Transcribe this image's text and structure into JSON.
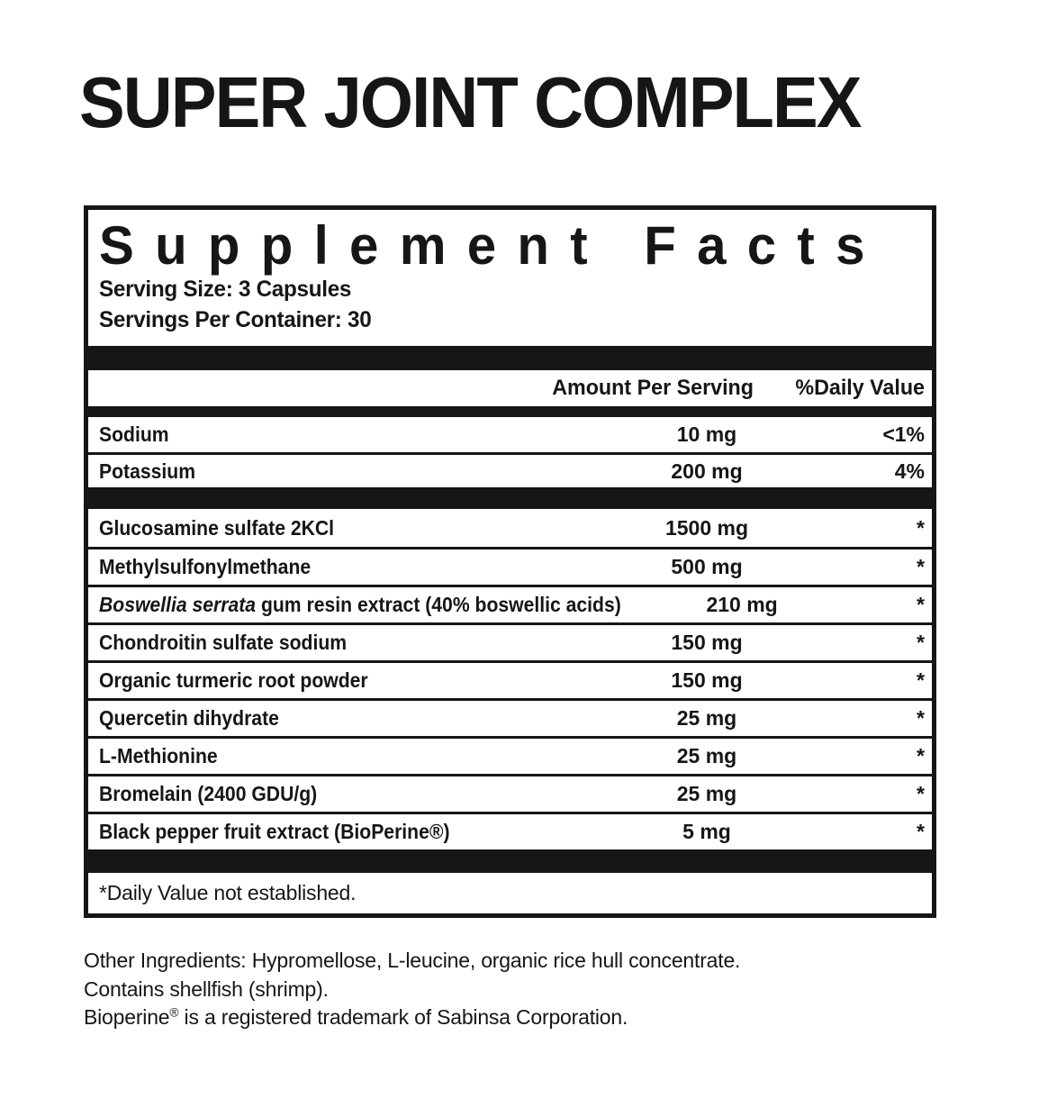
{
  "page_title": "SUPER JOINT COMPLEX",
  "panel": {
    "title": "Supplement Facts",
    "serving_size": "Serving Size: 3 Capsules",
    "servings_per_container": "Servings Per Container: 30",
    "columns": {
      "amount": "Amount Per Serving",
      "daily_value": "%Daily Value"
    },
    "nutrients": [
      {
        "name": "Sodium",
        "amount": "10 mg",
        "dv": "<1%"
      },
      {
        "name": "Potassium",
        "amount": "200 mg",
        "dv": "4%"
      }
    ],
    "ingredients": [
      {
        "name": "Glucosamine sulfate 2KCl",
        "amount": "1500 mg",
        "dv": "*"
      },
      {
        "name": "Methylsulfonylmethane",
        "amount": "500 mg",
        "dv": "*"
      },
      {
        "name_italic": "Boswellia serrata",
        "name": " gum resin extract (40% boswellic acids)",
        "amount": "210 mg",
        "dv": "*"
      },
      {
        "name": "Chondroitin sulfate sodium",
        "amount": "150 mg",
        "dv": "*"
      },
      {
        "name": "Organic turmeric root powder",
        "amount": "150 mg",
        "dv": "*"
      },
      {
        "name": "Quercetin dihydrate",
        "amount": "25 mg",
        "dv": "*"
      },
      {
        "name": "L-Methionine",
        "amount": "25 mg",
        "dv": "*"
      },
      {
        "name": "Bromelain (2400 GDU/g)",
        "amount": "25 mg",
        "dv": "*"
      },
      {
        "name": "Black pepper fruit extract (BioPerine®)",
        "amount": "5 mg",
        "dv": "*"
      }
    ],
    "footnote": "*Daily Value not established."
  },
  "footer": {
    "other_ingredients": "Other Ingredients: Hypromellose, L-leucine, organic rice hull concentrate.",
    "allergen": "Contains shellfish (shrimp).",
    "trademark": {
      "pre": "Bioperine",
      "sup": "®",
      "post": " is a registered trademark of Sabinsa Corporation."
    }
  },
  "colors": {
    "ink": "#161616",
    "background": "#ffffff"
  }
}
